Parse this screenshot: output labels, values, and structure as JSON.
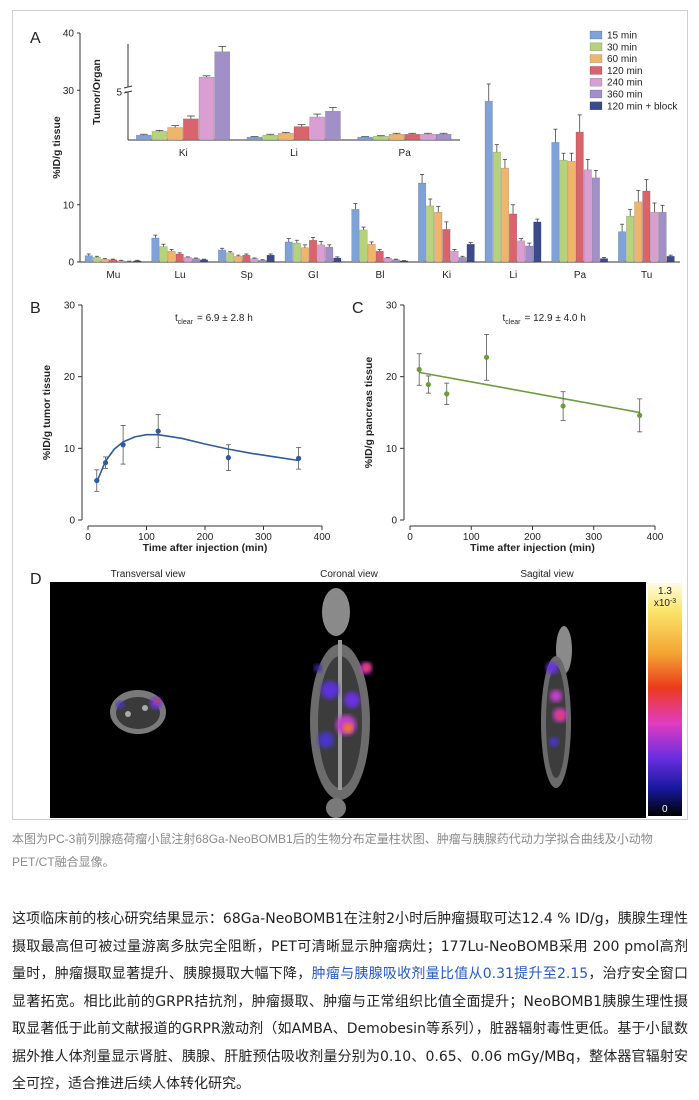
{
  "chart_data": [
    {
      "type": "bar",
      "panel": "A",
      "ylabel": "%ID/g tissue",
      "categories": [
        "Mu",
        "Lu",
        "Sp",
        "GI",
        "Bl",
        "Ki",
        "Li",
        "Pa",
        "Tu"
      ],
      "ylim": [
        0,
        40
      ],
      "yticks": [
        0,
        10,
        30,
        40
      ],
      "legend": "upper right",
      "series": [
        {
          "name": "15 min",
          "color": "#7fa3d8",
          "values": [
            1.1,
            4.2,
            2.1,
            3.5,
            9.2,
            13.8,
            28.1,
            20.9,
            5.3
          ],
          "errors": [
            0.3,
            0.5,
            0.3,
            0.6,
            1.0,
            1.5,
            3.0,
            2.3,
            1.3
          ]
        },
        {
          "name": "30 min",
          "color": "#b6d27c",
          "values": [
            0.8,
            2.7,
            1.6,
            3.3,
            5.6,
            9.8,
            19.2,
            17.8,
            8.0
          ],
          "errors": [
            0.2,
            0.4,
            0.2,
            0.5,
            0.5,
            1.2,
            1.3,
            1.2,
            1.2
          ]
        },
        {
          "name": "60 min",
          "color": "#f0b56c",
          "values": [
            0.5,
            1.9,
            1.0,
            2.5,
            3.1,
            8.7,
            16.4,
            17.6,
            10.5
          ],
          "errors": [
            0.1,
            0.3,
            0.2,
            0.5,
            0.4,
            1.0,
            1.5,
            1.4,
            2.0
          ]
        },
        {
          "name": "120 min",
          "color": "#d9646c",
          "values": [
            0.4,
            1.4,
            1.2,
            3.8,
            1.9,
            5.7,
            8.4,
            22.7,
            12.4
          ],
          "errors": [
            0.1,
            0.2,
            0.2,
            0.5,
            0.3,
            1.3,
            1.6,
            3.0,
            2.0
          ]
        },
        {
          "name": "240 min",
          "color": "#d99fd2",
          "values": [
            0.2,
            0.8,
            0.6,
            3.0,
            0.7,
            1.9,
            3.7,
            16.1,
            8.7
          ],
          "errors": [
            0.1,
            0.1,
            0.1,
            0.6,
            0.1,
            0.3,
            0.4,
            1.8,
            1.6
          ]
        },
        {
          "name": "360 min",
          "color": "#a190c8",
          "values": [
            0.1,
            0.6,
            0.3,
            2.6,
            0.4,
            0.8,
            2.8,
            14.7,
            8.7
          ],
          "errors": [
            0.05,
            0.1,
            0.1,
            0.4,
            0.1,
            0.2,
            0.5,
            1.3,
            1.2
          ]
        },
        {
          "name": "120 min + block",
          "color": "#3c4a8c",
          "values": [
            0.2,
            0.4,
            1.2,
            0.7,
            0.2,
            3.1,
            7.0,
            0.6,
            1.0
          ],
          "errors": [
            0.1,
            0.1,
            0.2,
            0.2,
            0.05,
            0.3,
            0.5,
            0.2,
            0.2
          ]
        }
      ]
    },
    {
      "type": "bar",
      "inset": true,
      "ylabel": "Tumor/Organ",
      "categories": [
        "Ki",
        "Li",
        "Pa"
      ],
      "ylim": [
        0,
        25
      ],
      "ybreak": 5,
      "yticks": [
        5
      ],
      "series": [
        {
          "color": "#7fa3d8",
          "values": [
            0.5,
            0.3,
            0.3
          ],
          "errors": [
            0.1,
            0.05,
            0.05
          ]
        },
        {
          "color": "#b6d27c",
          "values": [
            0.9,
            0.5,
            0.4
          ],
          "errors": [
            0.1,
            0.1,
            0.05
          ]
        },
        {
          "color": "#f0b56c",
          "values": [
            1.3,
            0.7,
            0.6
          ],
          "errors": [
            0.2,
            0.1,
            0.1
          ]
        },
        {
          "color": "#d9646c",
          "values": [
            2.2,
            1.4,
            0.6
          ],
          "errors": [
            0.3,
            0.2,
            0.1
          ]
        },
        {
          "color": "#d99fd2",
          "values": [
            9.6,
            2.4,
            0.6
          ],
          "errors": [
            0.6,
            0.3,
            0.1
          ]
        },
        {
          "color": "#a190c8",
          "values": [
            21.4,
            3.0,
            0.6
          ],
          "errors": [
            2.5,
            0.4,
            0.1
          ]
        }
      ]
    },
    {
      "type": "scatter",
      "panel": "B",
      "color": "#2f5a9e",
      "annotation": {
        "symbol": "t",
        "subscript": "clear",
        "text": "= 6.9 ± 2.8 h"
      },
      "xlabel": "Time after injection (min)",
      "ylabel": "%ID/g tumor tissue",
      "xlim": [
        0,
        400
      ],
      "ylim": [
        0,
        30
      ],
      "xticks": [
        0,
        100,
        200,
        300,
        400
      ],
      "yticks": [
        0,
        10,
        20,
        30
      ],
      "x": [
        15,
        30,
        60,
        120,
        240,
        360
      ],
      "values": [
        5.5,
        8.0,
        10.5,
        12.4,
        8.7,
        8.6
      ],
      "errors": [
        1.5,
        0.8,
        2.7,
        2.3,
        1.8,
        1.5
      ],
      "fit": {
        "x": [
          15,
          30,
          45,
          60,
          80,
          100,
          120,
          160,
          200,
          240,
          280,
          320,
          360
        ],
        "values": [
          5.3,
          8.2,
          9.9,
          10.9,
          11.6,
          11.9,
          11.9,
          11.4,
          10.6,
          9.9,
          9.3,
          8.8,
          8.3
        ]
      }
    },
    {
      "type": "scatter",
      "panel": "C",
      "color": "#6b9c3e",
      "annotation": {
        "symbol": "t",
        "subscript": "clear",
        "text": "= 12.9 ± 4.0 h"
      },
      "xlabel": "Time after injection (min)",
      "ylabel": "%ID/g pancreas tissue",
      "xlim": [
        0,
        400
      ],
      "ylim": [
        0,
        30
      ],
      "xticks": [
        0,
        100,
        200,
        300,
        400
      ],
      "yticks": [
        0,
        10,
        20,
        30
      ],
      "x": [
        15,
        30,
        60,
        125,
        250,
        375
      ],
      "values": [
        21.0,
        18.9,
        17.6,
        22.7,
        15.9,
        14.6
      ],
      "errors": [
        2.2,
        1.2,
        1.5,
        3.2,
        2.0,
        2.3
      ],
      "fit": {
        "x": [
          15,
          375
        ],
        "values": [
          20.6,
          15.0
        ]
      }
    }
  ],
  "image_panel": {
    "panel": "D",
    "views": [
      "Transversal view",
      "Coronal view",
      "Sagital view"
    ],
    "colorbar": {
      "max": 1.3,
      "unit": "x10",
      "exponent": "-3",
      "min": 0
    }
  },
  "caption": "本图为PC-3前列腺癌荷瘤小鼠注射68Ga-NeoBOMB1后的生物分布定量柱状图、肿瘤与胰腺药代动力学拟合曲线及小动物PET/CT融合显像。",
  "article": {
    "parts": [
      "这项临床前的核心研究结果显示：68Ga-NeoBOMB1在注射2小时后肿瘤摄取可达12.4 % ID/g，胰腺生理性摄取最高但可被过量游离多肽完全阻断，PET可清晰显示肿瘤病灶；177Lu-NeoBOMB采用 200 pmol高剂量时，肿瘤摄取显著提升、胰腺摄取大幅下降，",
      "肿瘤与胰腺吸收剂量比值从0.31提升至2.15",
      "，治疗安全窗口显著拓宽。相比此前的GRPR拮抗剂，肿瘤摄取、肿瘤与正常组织比值全面提升；NeoBOMB1胰腺生理性摄取显著低于此前文献报道的GRPR激动剂（如AMBA、Demobesin等系列），脏器辐射毒性更低。基于小鼠数据外推人体剂量显示肾脏、胰腺、肝脏预估吸收剂量分别为0.10、0.65、0.06 mGy/MBq，整体器官辐射安全可控，适合推进后续人体转化研究。"
    ]
  }
}
